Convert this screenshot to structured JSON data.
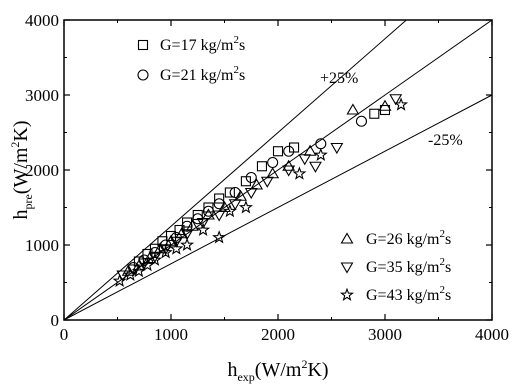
{
  "chart_data": {
    "type": "scatter",
    "xlabel": {
      "main": "h",
      "sub": "exp",
      "unit_pre": "(W/m",
      "unit_sup": "2",
      "unit_post": "K)"
    },
    "ylabel": {
      "main": "h",
      "sub": "pre",
      "unit_pre": "(W/m",
      "unit_sup": "2",
      "unit_post": "K)"
    },
    "xlim": [
      0,
      4000
    ],
    "ylim": [
      0,
      4000
    ],
    "xticks": [
      "0",
      "1000",
      "2000",
      "3000",
      "4000"
    ],
    "yticks": [
      "0",
      "1000",
      "2000",
      "3000",
      "4000"
    ],
    "grid": false,
    "reference_lines": [
      {
        "label": "+25%",
        "slope": 1.25
      },
      {
        "label": "",
        "slope": 1.0
      },
      {
        "label": "-25%",
        "slope": 0.75
      }
    ],
    "legend_top_left": [
      {
        "marker": "square",
        "text": "G=17 kg/m",
        "sup": "2",
        "tail": "s"
      },
      {
        "marker": "circle",
        "text": "G=21 kg/m",
        "sup": "2",
        "tail": "s"
      }
    ],
    "legend_bottom_right": [
      {
        "marker": "triangle-up",
        "text": "G=26 kg/m",
        "sup": "2",
        "tail": "s"
      },
      {
        "marker": "triangle-down",
        "text": "G=35 kg/m",
        "sup": "2",
        "tail": "s"
      },
      {
        "marker": "star",
        "text": "G=43 kg/m",
        "sup": "2",
        "tail": "s"
      }
    ],
    "series": [
      {
        "marker": "square",
        "points": [
          [
            700,
            780
          ],
          [
            780,
            880
          ],
          [
            850,
            950
          ],
          [
            920,
            1050
          ],
          [
            1000,
            1120
          ],
          [
            1080,
            1200
          ],
          [
            1150,
            1300
          ],
          [
            1250,
            1400
          ],
          [
            1350,
            1500
          ],
          [
            1450,
            1620
          ],
          [
            1550,
            1700
          ],
          [
            1700,
            1850
          ],
          [
            1850,
            2050
          ],
          [
            2000,
            2250
          ],
          [
            2150,
            2300
          ],
          [
            2900,
            2750
          ],
          [
            3000,
            2800
          ]
        ]
      },
      {
        "marker": "circle",
        "points": [
          [
            650,
            700
          ],
          [
            750,
            800
          ],
          [
            850,
            900
          ],
          [
            950,
            1000
          ],
          [
            1050,
            1100
          ],
          [
            1150,
            1250
          ],
          [
            1250,
            1350
          ],
          [
            1350,
            1450
          ],
          [
            1450,
            1550
          ],
          [
            1600,
            1700
          ],
          [
            1750,
            1900
          ],
          [
            1950,
            2100
          ],
          [
            2100,
            2250
          ],
          [
            2400,
            2350
          ],
          [
            2780,
            2650
          ]
        ]
      },
      {
        "marker": "triangle-up",
        "points": [
          [
            600,
            650
          ],
          [
            700,
            720
          ],
          [
            800,
            820
          ],
          [
            900,
            950
          ],
          [
            1000,
            1050
          ],
          [
            1100,
            1150
          ],
          [
            1200,
            1250
          ],
          [
            1350,
            1400
          ],
          [
            1500,
            1500
          ],
          [
            1650,
            1650
          ],
          [
            1800,
            1800
          ],
          [
            1950,
            1950
          ],
          [
            2100,
            2050
          ],
          [
            2300,
            2250
          ],
          [
            2700,
            2800
          ],
          [
            3000,
            2850
          ]
        ]
      },
      {
        "marker": "triangle-down",
        "points": [
          [
            550,
            600
          ],
          [
            650,
            680
          ],
          [
            750,
            760
          ],
          [
            850,
            850
          ],
          [
            950,
            950
          ],
          [
            1050,
            1050
          ],
          [
            1150,
            1150
          ],
          [
            1300,
            1300
          ],
          [
            1450,
            1400
          ],
          [
            1600,
            1550
          ],
          [
            1750,
            1700
          ],
          [
            1900,
            1850
          ],
          [
            2100,
            2000
          ],
          [
            2250,
            2150
          ],
          [
            2350,
            2050
          ],
          [
            2550,
            2300
          ],
          [
            3100,
            2950
          ]
        ]
      },
      {
        "marker": "star",
        "points": [
          [
            520,
            520
          ],
          [
            620,
            600
          ],
          [
            700,
            650
          ],
          [
            780,
            730
          ],
          [
            850,
            800
          ],
          [
            950,
            900
          ],
          [
            1050,
            950
          ],
          [
            1150,
            1000
          ],
          [
            1300,
            1200
          ],
          [
            1450,
            1100
          ],
          [
            1550,
            1450
          ],
          [
            1700,
            1500
          ],
          [
            2200,
            1950
          ],
          [
            2400,
            2200
          ],
          [
            3150,
            2870
          ]
        ]
      }
    ]
  }
}
